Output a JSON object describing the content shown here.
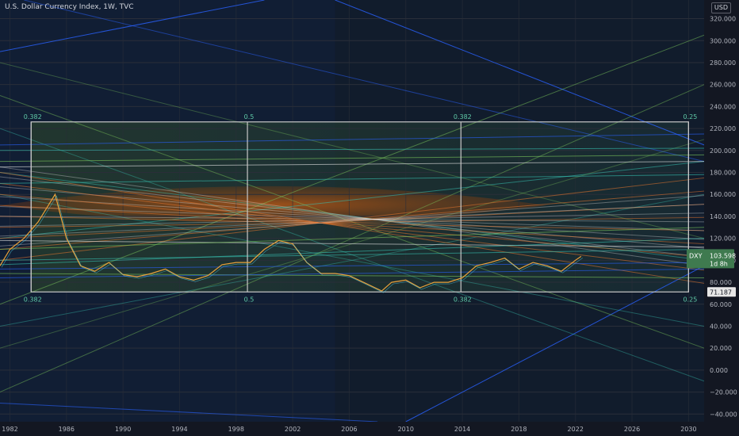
{
  "chart_data": {
    "type": "line",
    "title": "U.S. Dollar Currency Index, 1W, TVC",
    "currency": "USD",
    "xlim": [
      1981.3,
      2031.1
    ],
    "ylim": [
      -47,
      337
    ],
    "x_ticks": [
      "1982",
      "1986",
      "1990",
      "1994",
      "1998",
      "2002",
      "2006",
      "2010",
      "2014",
      "2018",
      "2022",
      "2026",
      "2030"
    ],
    "y_ticks": [
      "320.000",
      "300.000",
      "280.000",
      "260.000",
      "240.000",
      "220.000",
      "200.000",
      "180.000",
      "160.000",
      "140.000",
      "120.000",
      "100.000",
      "80.000",
      "60.000",
      "40.000",
      "20.000",
      "0.000",
      "−20.000",
      "−40.000"
    ],
    "series": [
      {
        "symbol": "DXY",
        "color": "#e9a23b",
        "x": [
          1981.3,
          1982,
          1983,
          1984,
          1985.2,
          1986,
          1987,
          1988,
          1989,
          1990,
          1991,
          1992,
          1993,
          1994,
          1995,
          1996,
          1997,
          1998,
          1999,
          2000,
          2001,
          2002,
          2003,
          2004,
          2005,
          2006,
          2007,
          2008.3,
          2009,
          2010,
          2011,
          2012,
          2013,
          2014,
          2015,
          2016,
          2017,
          2018,
          2019,
          2020,
          2021,
          2022,
          2022.4
        ],
        "values": [
          95,
          110,
          120,
          135,
          160,
          120,
          95,
          90,
          98,
          87,
          85,
          88,
          92,
          85,
          82,
          86,
          96,
          98,
          98,
          110,
          118,
          115,
          98,
          88,
          88,
          86,
          80,
          72,
          80,
          82,
          75,
          80,
          80,
          84,
          95,
          98,
          102,
          92,
          98,
          95,
          90,
          100,
          103.598
        ]
      }
    ],
    "fib_box": {
      "x": [
        1983.5,
        2030
      ],
      "y": [
        71.187,
        226
      ],
      "markers": [
        {
          "x": 1983.5,
          "label": "0.382"
        },
        {
          "x": 1998.8,
          "label": "0.5"
        },
        {
          "x": 2013.9,
          "label": "0.382"
        },
        {
          "x": 2030,
          "label": "0.25"
        }
      ]
    },
    "price_label": {
      "symbol": "DXY",
      "value": "103.598",
      "countdown": "1d 8h",
      "y": 103.598
    },
    "level_label": {
      "value": "71.187",
      "y": 71.187
    },
    "colors": {
      "background": "#131722",
      "text": "#b2b5be",
      "price_tag": "#3f7a4f",
      "box_line": "#c8c8c8",
      "orange": "#e8772e",
      "blue": "#2962ff",
      "green": "#7cc75b",
      "teal": "#37c0b0"
    }
  }
}
